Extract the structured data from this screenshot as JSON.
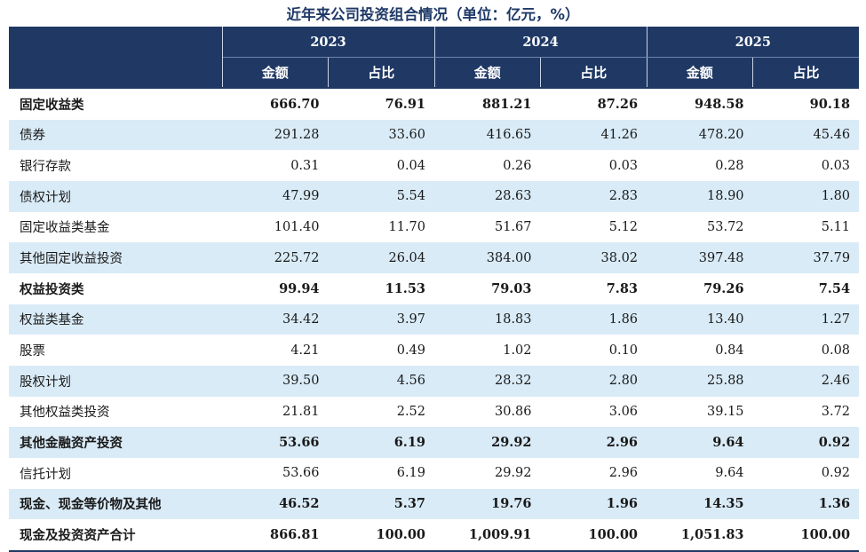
{
  "title": "近年来公司投资组合情况（单位：亿元，%）",
  "header": {
    "years": [
      "2023",
      "2024",
      "2025"
    ],
    "amount_label": "金额",
    "ratio_label": "占比"
  },
  "rows": [
    {
      "name": "固定收益类",
      "bold": true,
      "shade": false,
      "values": [
        "666.70",
        "76.91",
        "881.21",
        "87.26",
        "948.58",
        "90.18"
      ]
    },
    {
      "name": "债券",
      "bold": false,
      "shade": true,
      "values": [
        "291.28",
        "33.60",
        "416.65",
        "41.26",
        "478.20",
        "45.46"
      ]
    },
    {
      "name": "银行存款",
      "bold": false,
      "shade": false,
      "values": [
        "0.31",
        "0.04",
        "0.26",
        "0.03",
        "0.28",
        "0.03"
      ]
    },
    {
      "name": "债权计划",
      "bold": false,
      "shade": true,
      "values": [
        "47.99",
        "5.54",
        "28.63",
        "2.83",
        "18.90",
        "1.80"
      ]
    },
    {
      "name": "固定收益类基金",
      "bold": false,
      "shade": false,
      "values": [
        "101.40",
        "11.70",
        "51.67",
        "5.12",
        "53.72",
        "5.11"
      ]
    },
    {
      "name": "其他固定收益投资",
      "bold": false,
      "shade": true,
      "values": [
        "225.72",
        "26.04",
        "384.00",
        "38.02",
        "397.48",
        "37.79"
      ]
    },
    {
      "name": "权益投资类",
      "bold": true,
      "shade": false,
      "values": [
        "99.94",
        "11.53",
        "79.03",
        "7.83",
        "79.26",
        "7.54"
      ]
    },
    {
      "name": "权益类基金",
      "bold": false,
      "shade": true,
      "values": [
        "34.42",
        "3.97",
        "18.83",
        "1.86",
        "13.40",
        "1.27"
      ]
    },
    {
      "name": "股票",
      "bold": false,
      "shade": false,
      "values": [
        "4.21",
        "0.49",
        "1.02",
        "0.10",
        "0.84",
        "0.08"
      ]
    },
    {
      "name": "股权计划",
      "bold": false,
      "shade": true,
      "values": [
        "39.50",
        "4.56",
        "28.32",
        "2.80",
        "25.88",
        "2.46"
      ]
    },
    {
      "name": "其他权益类投资",
      "bold": false,
      "shade": false,
      "values": [
        "21.81",
        "2.52",
        "30.86",
        "3.06",
        "39.15",
        "3.72"
      ]
    },
    {
      "name": "其他金融资产投资",
      "bold": true,
      "shade": true,
      "values": [
        "53.66",
        "6.19",
        "29.92",
        "2.96",
        "9.64",
        "0.92"
      ]
    },
    {
      "name": "信托计划",
      "bold": false,
      "shade": false,
      "values": [
        "53.66",
        "6.19",
        "29.92",
        "2.96",
        "9.64",
        "0.92"
      ]
    },
    {
      "name": "现金、现金等价物及其他",
      "bold": true,
      "shade": true,
      "values": [
        "46.52",
        "5.37",
        "19.76",
        "1.96",
        "14.35",
        "1.36"
      ]
    },
    {
      "name": "现金及投资资产合计",
      "bold": true,
      "shade": false,
      "values": [
        "866.81",
        "100.00",
        "1,009.91",
        "100.00",
        "1,051.83",
        "100.00"
      ]
    }
  ],
  "colors": {
    "header_bg": "#1f3864",
    "row_shade": "#d9ebf7",
    "title": "#1f3a68"
  }
}
